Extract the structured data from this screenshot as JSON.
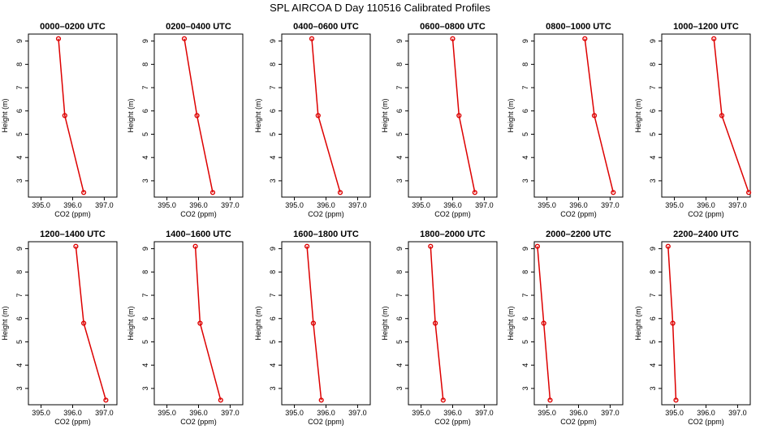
{
  "figure_title": "SPL AIRCOA D  Day 110516  Calibrated Profiles",
  "colors": {
    "series": "#dd0000",
    "axes": "#000000"
  },
  "chart_data": [
    {
      "type": "line",
      "title": "0000–0200 UTC",
      "xlabel": "CO2 (ppm)",
      "ylabel": "Height (m)",
      "xlim": [
        394.6,
        397.4
      ],
      "ylim": [
        2.3,
        9.3
      ],
      "xticks": [
        395.0,
        396.0,
        397.0
      ],
      "xtick_labels": [
        "395.0",
        "396.0",
        "397.0"
      ],
      "yticks": [
        3,
        4,
        5,
        6,
        7,
        8,
        9
      ],
      "series": [
        {
          "x": [
            395.55,
            395.75,
            396.35
          ],
          "y": [
            9.1,
            5.8,
            2.5
          ]
        }
      ]
    },
    {
      "type": "line",
      "title": "0200–0400 UTC",
      "xlabel": "CO2 (ppm)",
      "ylabel": "Height (m)",
      "xlim": [
        394.6,
        397.4
      ],
      "ylim": [
        2.3,
        9.3
      ],
      "xticks": [
        395.0,
        396.0,
        397.0
      ],
      "xtick_labels": [
        "395.0",
        "396.0",
        "397.0"
      ],
      "yticks": [
        3,
        4,
        5,
        6,
        7,
        8,
        9
      ],
      "series": [
        {
          "x": [
            395.55,
            395.95,
            396.45
          ],
          "y": [
            9.1,
            5.8,
            2.5
          ]
        }
      ]
    },
    {
      "type": "line",
      "title": "0400–0600 UTC",
      "xlabel": "CO2 (ppm)",
      "ylabel": "Height (m)",
      "xlim": [
        394.6,
        397.4
      ],
      "ylim": [
        2.3,
        9.3
      ],
      "xticks": [
        395.0,
        396.0,
        397.0
      ],
      "xtick_labels": [
        "395.0",
        "396.0",
        "397.0"
      ],
      "yticks": [
        3,
        4,
        5,
        6,
        7,
        8,
        9
      ],
      "series": [
        {
          "x": [
            395.55,
            395.75,
            396.45
          ],
          "y": [
            9.1,
            5.8,
            2.5
          ]
        }
      ]
    },
    {
      "type": "line",
      "title": "0600–0800 UTC",
      "xlabel": "CO2 (ppm)",
      "ylabel": "Height (m)",
      "xlim": [
        394.6,
        397.4
      ],
      "ylim": [
        2.3,
        9.3
      ],
      "xticks": [
        395.0,
        396.0,
        397.0
      ],
      "xtick_labels": [
        "395.0",
        "396.0",
        "397.0"
      ],
      "yticks": [
        3,
        4,
        5,
        6,
        7,
        8,
        9
      ],
      "series": [
        {
          "x": [
            396.0,
            396.2,
            396.7
          ],
          "y": [
            9.1,
            5.8,
            2.5
          ]
        }
      ]
    },
    {
      "type": "line",
      "title": "0800–1000 UTC",
      "xlabel": "CO2 (ppm)",
      "ylabel": "Height (m)",
      "xlim": [
        394.6,
        397.4
      ],
      "ylim": [
        2.3,
        9.3
      ],
      "xticks": [
        395.0,
        396.0,
        397.0
      ],
      "xtick_labels": [
        "395.0",
        "396.0",
        "397.0"
      ],
      "yticks": [
        3,
        4,
        5,
        6,
        7,
        8,
        9
      ],
      "series": [
        {
          "x": [
            396.2,
            396.5,
            397.1
          ],
          "y": [
            9.1,
            5.8,
            2.5
          ]
        }
      ]
    },
    {
      "type": "line",
      "title": "1000–1200 UTC",
      "xlabel": "CO2 (ppm)",
      "ylabel": "Height (m)",
      "xlim": [
        394.6,
        397.4
      ],
      "ylim": [
        2.3,
        9.3
      ],
      "xticks": [
        395.0,
        396.0,
        397.0
      ],
      "xtick_labels": [
        "395.0",
        "396.0",
        "397.0"
      ],
      "yticks": [
        3,
        4,
        5,
        6,
        7,
        8,
        9
      ],
      "series": [
        {
          "x": [
            396.25,
            396.5,
            397.35
          ],
          "y": [
            9.1,
            5.8,
            2.5
          ]
        }
      ]
    },
    {
      "type": "line",
      "title": "1200–1400 UTC",
      "xlabel": "CO2 (ppm)",
      "ylabel": "Height (m)",
      "xlim": [
        394.6,
        397.4
      ],
      "ylim": [
        2.3,
        9.3
      ],
      "xticks": [
        395.0,
        396.0,
        397.0
      ],
      "xtick_labels": [
        "395.0",
        "396.0",
        "397.0"
      ],
      "yticks": [
        3,
        4,
        5,
        6,
        7,
        8,
        9
      ],
      "series": [
        {
          "x": [
            396.1,
            396.35,
            397.05
          ],
          "y": [
            9.1,
            5.8,
            2.5
          ]
        }
      ]
    },
    {
      "type": "line",
      "title": "1400–1600 UTC",
      "xlabel": "CO2 (ppm)",
      "ylabel": "Height (m)",
      "xlim": [
        394.6,
        397.4
      ],
      "ylim": [
        2.3,
        9.3
      ],
      "xticks": [
        395.0,
        396.0,
        397.0
      ],
      "xtick_labels": [
        "395.0",
        "396.0",
        "397.0"
      ],
      "yticks": [
        3,
        4,
        5,
        6,
        7,
        8,
        9
      ],
      "series": [
        {
          "x": [
            395.9,
            396.05,
            396.7
          ],
          "y": [
            9.1,
            5.8,
            2.5
          ]
        }
      ]
    },
    {
      "type": "line",
      "title": "1600–1800 UTC",
      "xlabel": "CO2 (ppm)",
      "ylabel": "Height (m)",
      "xlim": [
        394.6,
        397.4
      ],
      "ylim": [
        2.3,
        9.3
      ],
      "xticks": [
        395.0,
        396.0,
        397.0
      ],
      "xtick_labels": [
        "395.0",
        "396.0",
        "397.0"
      ],
      "yticks": [
        3,
        4,
        5,
        6,
        7,
        8,
        9
      ],
      "series": [
        {
          "x": [
            395.4,
            395.6,
            395.85
          ],
          "y": [
            9.1,
            5.8,
            2.5
          ]
        }
      ]
    },
    {
      "type": "line",
      "title": "1800–2000 UTC",
      "xlabel": "CO2 (ppm)",
      "ylabel": "Height (m)",
      "xlim": [
        394.6,
        397.4
      ],
      "ylim": [
        2.3,
        9.3
      ],
      "xticks": [
        395.0,
        396.0,
        397.0
      ],
      "xtick_labels": [
        "395.0",
        "396.0",
        "397.0"
      ],
      "yticks": [
        3,
        4,
        5,
        6,
        7,
        8,
        9
      ],
      "series": [
        {
          "x": [
            395.3,
            395.45,
            395.7
          ],
          "y": [
            9.1,
            5.8,
            2.5
          ]
        }
      ]
    },
    {
      "type": "line",
      "title": "2000–2200 UTC",
      "xlabel": "CO2 (ppm)",
      "ylabel": "Height (m)",
      "xlim": [
        394.6,
        397.4
      ],
      "ylim": [
        2.3,
        9.3
      ],
      "xticks": [
        395.0,
        396.0,
        397.0
      ],
      "xtick_labels": [
        "395.0",
        "396.0",
        "397.0"
      ],
      "yticks": [
        3,
        4,
        5,
        6,
        7,
        8,
        9
      ],
      "series": [
        {
          "x": [
            394.7,
            394.9,
            395.1
          ],
          "y": [
            9.1,
            5.8,
            2.5
          ]
        }
      ]
    },
    {
      "type": "line",
      "title": "2200–2400 UTC",
      "xlabel": "CO2 (ppm)",
      "ylabel": "Height (m)",
      "xlim": [
        394.6,
        397.4
      ],
      "ylim": [
        2.3,
        9.3
      ],
      "xticks": [
        395.0,
        396.0,
        397.0
      ],
      "xtick_labels": [
        "395.0",
        "396.0",
        "397.0"
      ],
      "yticks": [
        3,
        4,
        5,
        6,
        7,
        8,
        9
      ],
      "series": [
        {
          "x": [
            394.8,
            394.95,
            395.05
          ],
          "y": [
            9.1,
            5.8,
            2.5
          ]
        }
      ]
    }
  ]
}
